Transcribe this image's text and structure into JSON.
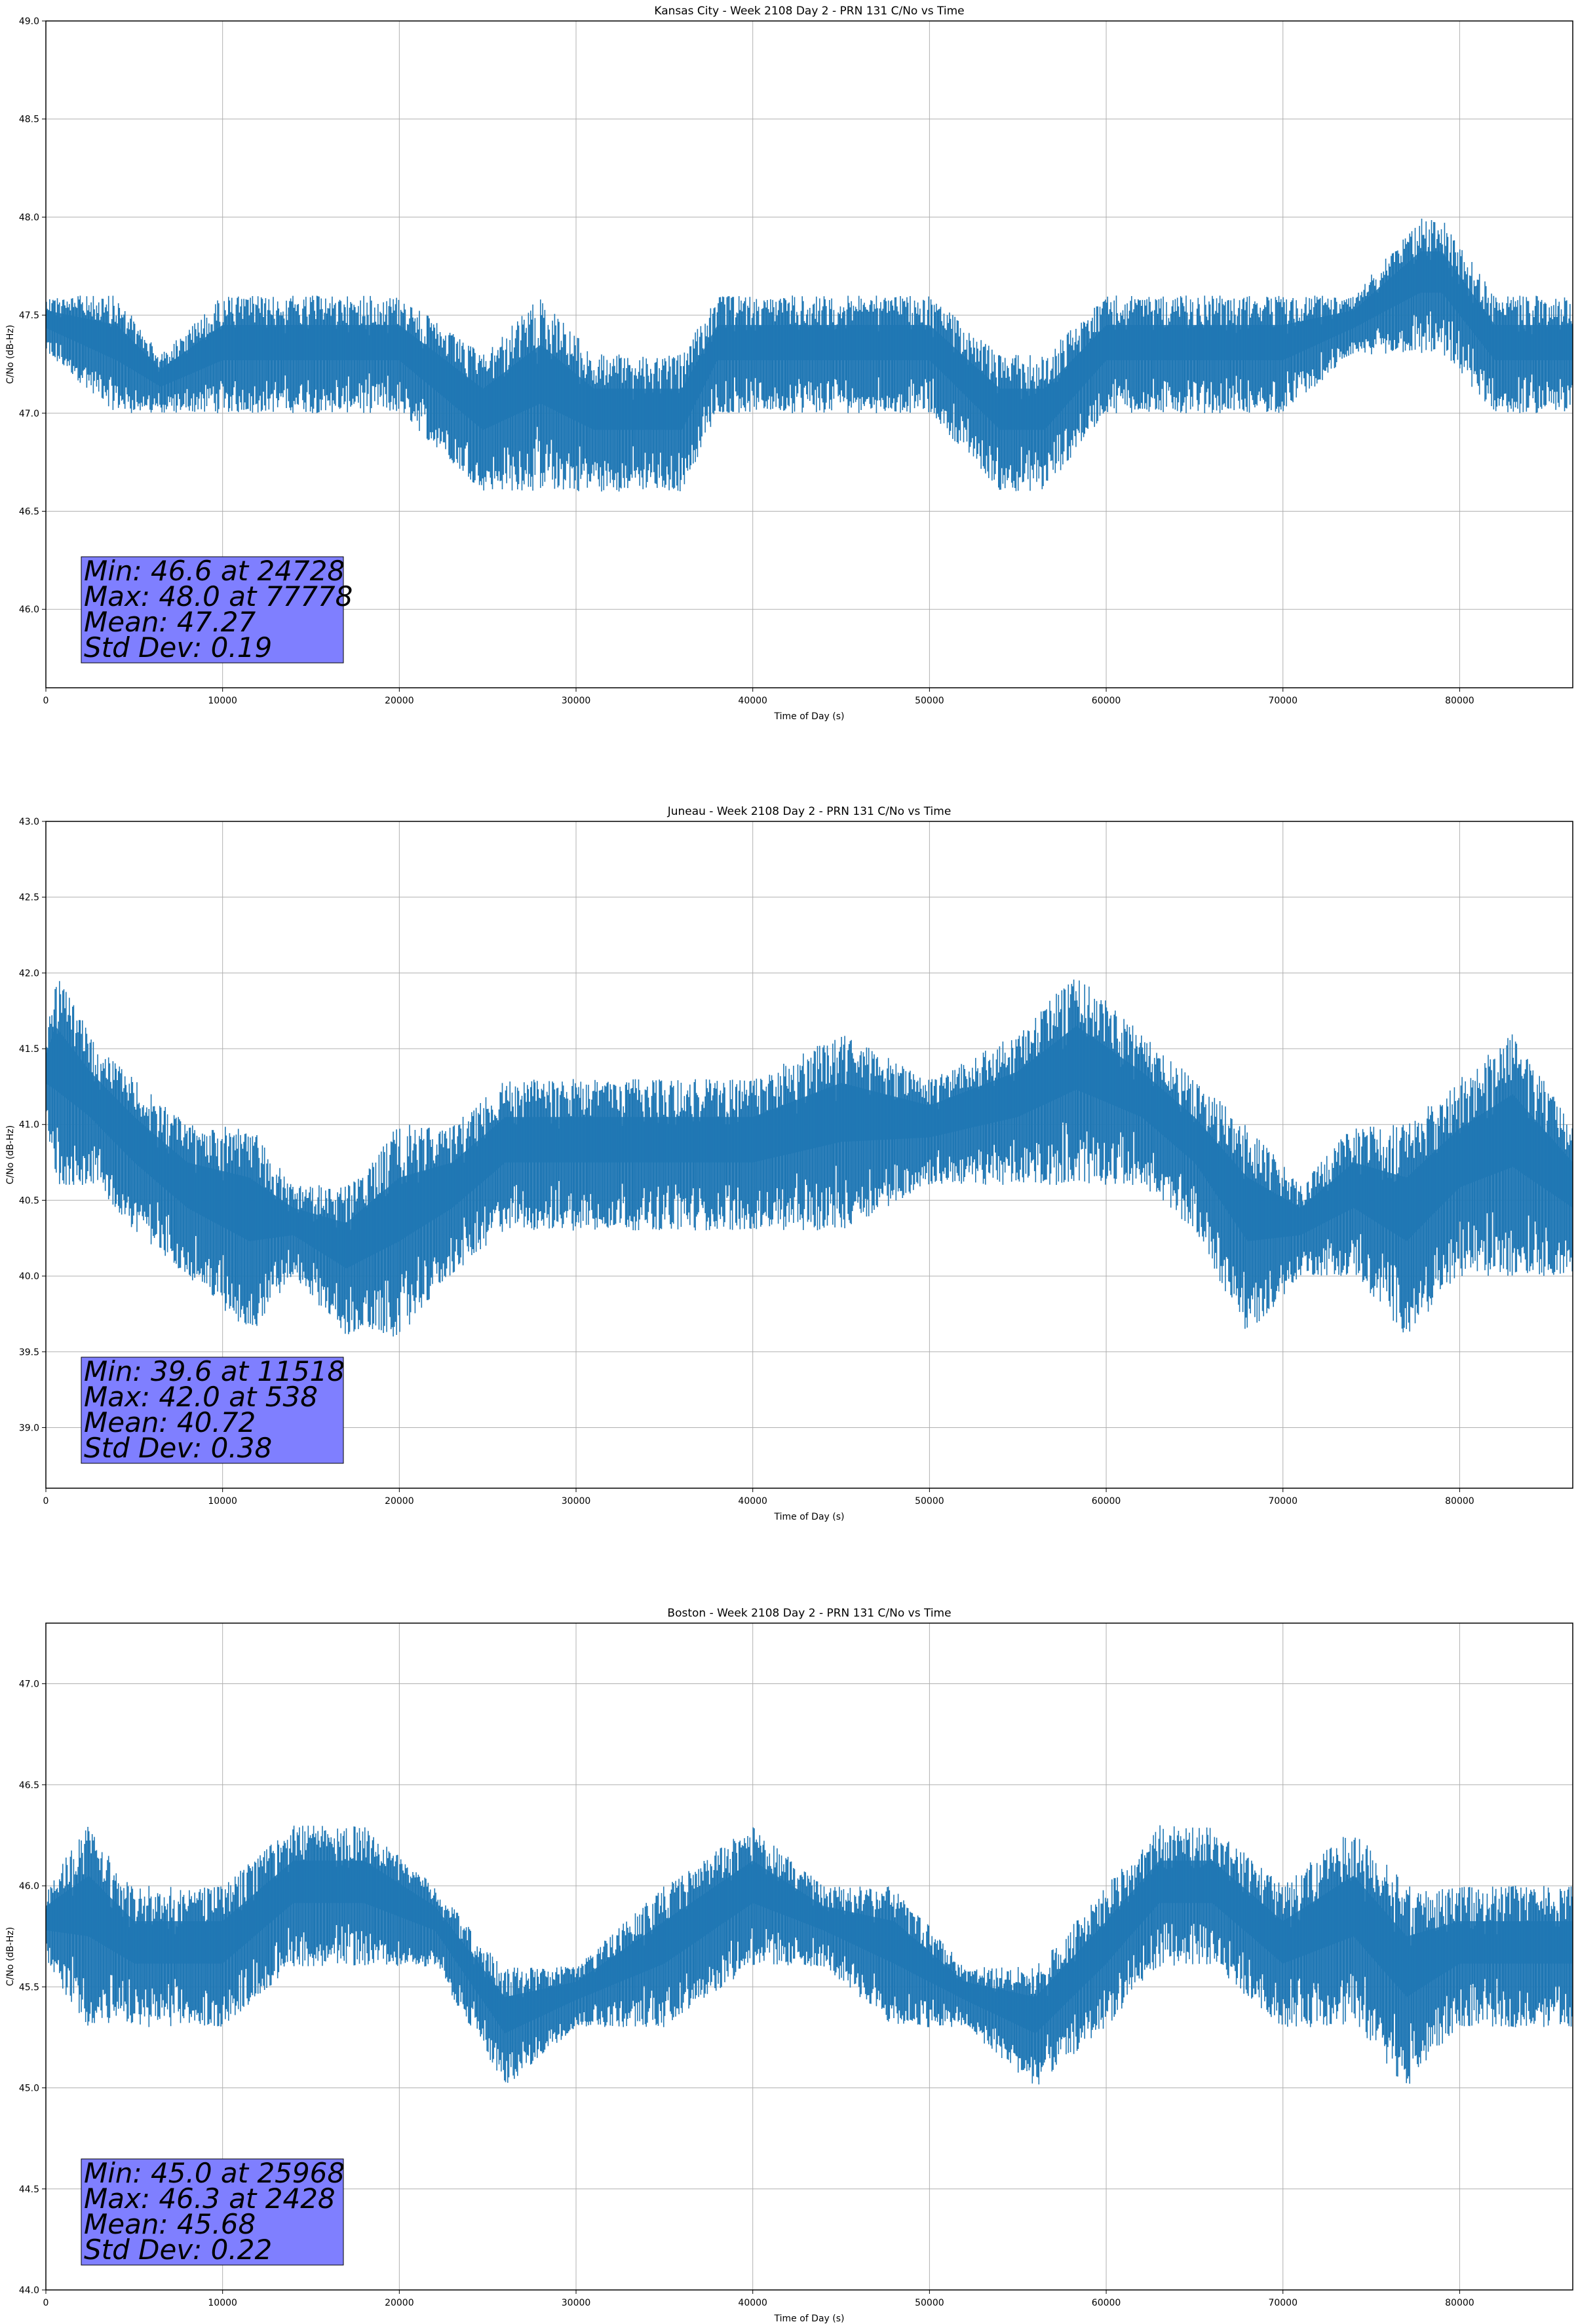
{
  "colors": {
    "line": "#1f77b4",
    "grid": "#b0b0b0",
    "stats_box": "#7f7fff",
    "background": "#ffffff"
  },
  "chart_data": [
    {
      "type": "line",
      "title": "Kansas City - Week 2108 Day 2 - PRN 131 C/No vs Time",
      "xlabel": "Time of Day (s)",
      "ylabel": "C/No (dB-Hz)",
      "xlim": [
        0,
        86400
      ],
      "ylim": [
        45.6,
        49.0
      ],
      "xticks": [
        0,
        10000,
        20000,
        30000,
        40000,
        50000,
        60000,
        70000,
        80000
      ],
      "yticks": [
        46.0,
        46.5,
        47.0,
        47.5,
        48.0,
        48.5,
        49.0
      ],
      "grid": true,
      "legend": "none",
      "stats_text": [
        "Min: 46.6 at 24728",
        "Max: 48.0 at 77778",
        "Mean: 47.27",
        "Std Dev: 0.19"
      ],
      "series": [
        {
          "x": [
            0,
            4000,
            6500,
            10000,
            15000,
            20000,
            24728,
            28000,
            31000,
            36000,
            38000,
            40000,
            45000,
            50000,
            54000,
            56500,
            60000,
            62000,
            65000,
            70000,
            74000,
            77778,
            79000,
            82000,
            86400
          ],
          "y_low": [
            47.3,
            47.0,
            47.0,
            47.0,
            47.0,
            47.0,
            46.6,
            46.6,
            46.6,
            46.6,
            47.0,
            47.0,
            47.0,
            47.0,
            46.6,
            46.6,
            47.0,
            47.0,
            47.0,
            47.0,
            47.3,
            47.3,
            47.3,
            47.0,
            47.0
          ],
          "y_high": [
            47.6,
            47.6,
            47.3,
            47.6,
            47.6,
            47.6,
            47.3,
            47.6,
            47.3,
            47.3,
            47.6,
            47.6,
            47.6,
            47.6,
            47.3,
            47.3,
            47.6,
            47.6,
            47.6,
            47.6,
            47.6,
            48.0,
            48.0,
            47.6,
            47.6
          ]
        }
      ]
    },
    {
      "type": "line",
      "title": "Juneau - Week 2108 Day 2 - PRN 131 C/No vs Time",
      "xlabel": "Time of Day (s)",
      "ylabel": "C/No (dB-Hz)",
      "xlim": [
        0,
        86400
      ],
      "ylim": [
        38.6,
        43.0
      ],
      "xticks": [
        0,
        10000,
        20000,
        30000,
        40000,
        50000,
        60000,
        70000,
        80000
      ],
      "yticks": [
        39.0,
        39.5,
        40.0,
        40.5,
        41.0,
        41.5,
        42.0,
        42.5,
        43.0
      ],
      "grid": true,
      "legend": "none",
      "stats_text": [
        "Min: 39.6 at 11518",
        "Max: 42.0 at 538",
        "Mean: 40.72",
        "Std Dev: 0.38"
      ],
      "series": [
        {
          "x": [
            0,
            538,
            2500,
            5000,
            8000,
            11518,
            14000,
            17000,
            20000,
            23000,
            26000,
            30000,
            35000,
            40000,
            45000,
            50000,
            55000,
            58300,
            62000,
            65000,
            68000,
            71000,
            74000,
            77000,
            80000,
            83000,
            86400
          ],
          "y_low": [
            41.0,
            40.6,
            40.6,
            40.3,
            40.0,
            39.6,
            40.0,
            39.6,
            39.6,
            40.0,
            40.3,
            40.3,
            40.3,
            40.3,
            40.3,
            40.6,
            40.6,
            40.6,
            40.6,
            40.3,
            39.6,
            40.0,
            40.0,
            39.6,
            40.0,
            40.0,
            40.0
          ],
          "y_high": [
            41.6,
            42.0,
            41.6,
            41.3,
            41.0,
            41.0,
            40.6,
            40.6,
            41.0,
            41.0,
            41.3,
            41.3,
            41.3,
            41.3,
            41.6,
            41.3,
            41.6,
            42.0,
            41.6,
            41.3,
            41.0,
            40.6,
            41.0,
            41.0,
            41.3,
            41.6,
            41.0
          ]
        }
      ]
    },
    {
      "type": "line",
      "title": "Boston - Week 2108 Day 2 - PRN 131 C/No vs Time",
      "xlabel": "Time of Day (s)",
      "ylabel": "C/No (dB-Hz)",
      "xlim": [
        0,
        86400
      ],
      "ylim": [
        44.0,
        47.3
      ],
      "xticks": [
        0,
        10000,
        20000,
        30000,
        40000,
        50000,
        60000,
        70000,
        80000
      ],
      "yticks": [
        44.0,
        44.5,
        45.0,
        45.5,
        46.0,
        46.5,
        47.0
      ],
      "grid": true,
      "legend": "none",
      "stats_text": [
        "Min: 45.0 at 25968",
        "Max: 46.3 at 2428",
        "Mean: 45.68",
        "Std Dev: 0.22"
      ],
      "series": [
        {
          "x": [
            0,
            2428,
            5000,
            10000,
            14000,
            18000,
            22000,
            25968,
            30000,
            35000,
            40000,
            44000,
            48000,
            52000,
            56000,
            60000,
            63000,
            66000,
            70000,
            74000,
            77000,
            80000,
            83000,
            86400
          ],
          "y_low": [
            45.6,
            45.3,
            45.3,
            45.3,
            45.6,
            45.6,
            45.6,
            45.0,
            45.3,
            45.3,
            45.6,
            45.6,
            45.3,
            45.3,
            45.0,
            45.3,
            45.6,
            45.6,
            45.3,
            45.3,
            45.0,
            45.3,
            45.3,
            45.3
          ],
          "y_high": [
            46.0,
            46.3,
            46.0,
            46.0,
            46.3,
            46.3,
            46.0,
            45.6,
            45.6,
            46.0,
            46.3,
            46.0,
            46.0,
            45.6,
            45.6,
            46.0,
            46.3,
            46.3,
            46.0,
            46.3,
            46.0,
            46.0,
            46.0,
            46.0
          ]
        }
      ]
    }
  ]
}
